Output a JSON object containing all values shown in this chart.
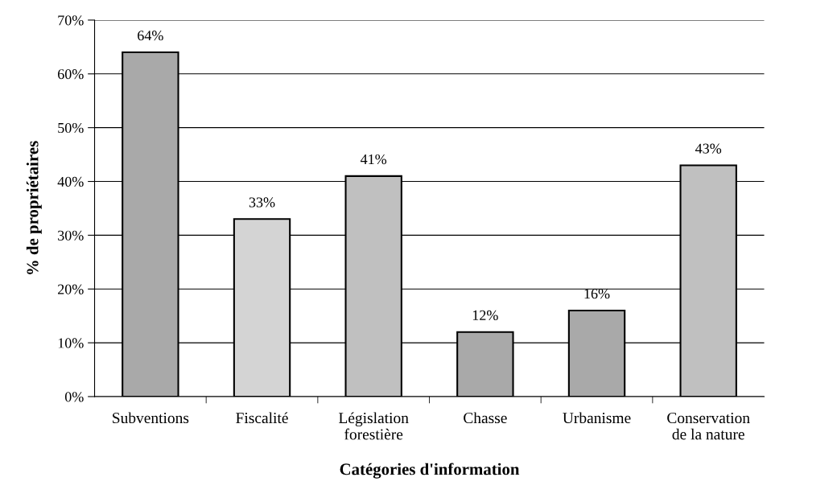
{
  "chart_data": {
    "type": "bar",
    "xlabel": "Catégories d'information",
    "ylabel": "% de propriétaires",
    "categories": [
      "Subventions",
      "Fiscalité",
      "Législation\nforestière",
      "Chasse",
      "Urbanisme",
      "Conservation\nde la nature"
    ],
    "values": [
      64,
      33,
      41,
      12,
      16,
      43
    ],
    "value_labels": [
      "64%",
      "33%",
      "41%",
      "12%",
      "16%",
      "43%"
    ],
    "colors": [
      "#a9a9a9",
      "#d4d4d4",
      "#c0c0c0",
      "#a9a9a9",
      "#a9a9a9",
      "#c0c0c0"
    ],
    "ylim": [
      0,
      70
    ],
    "yticks": [
      {
        "value": 0,
        "label": "0%"
      },
      {
        "value": 10,
        "label": "10%"
      },
      {
        "value": 20,
        "label": "20%"
      },
      {
        "value": 30,
        "label": "30%"
      },
      {
        "value": 40,
        "label": "40%"
      },
      {
        "value": 50,
        "label": "50%"
      },
      {
        "value": 60,
        "label": "60%"
      },
      {
        "value": 70,
        "label": "70%"
      }
    ],
    "grid": "y",
    "legend": false
  }
}
